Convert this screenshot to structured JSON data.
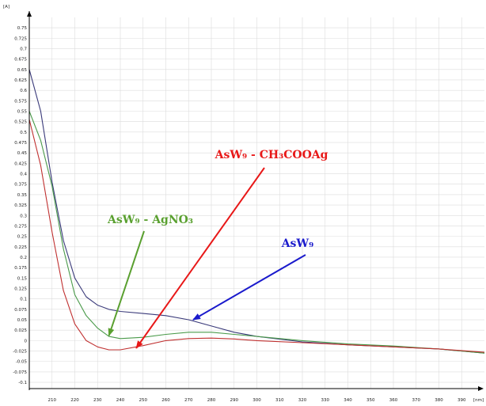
{
  "chart_data": {
    "type": "line",
    "ylabel": "[A]",
    "xunit": "[nm]",
    "xlim": [
      200,
      400
    ],
    "ylim": [
      -0.115,
      0.79
    ],
    "x_ticks": [
      210,
      220,
      230,
      240,
      250,
      260,
      270,
      280,
      290,
      300,
      310,
      320,
      330,
      340,
      350,
      360,
      370,
      380,
      390
    ],
    "y_ticks": [
      -0.1,
      -0.075,
      -0.05,
      -0.025,
      0,
      0.025,
      0.05,
      0.075,
      0.1,
      0.125,
      0.15,
      0.175,
      0.2,
      0.225,
      0.25,
      0.275,
      0.3,
      0.325,
      0.35,
      0.375,
      0.4,
      0.425,
      0.45,
      0.475,
      0.5,
      0.525,
      0.55,
      0.575,
      0.6,
      0.625,
      0.65,
      0.675,
      0.7,
      0.725,
      0.75
    ],
    "y_tick_labels": [
      "-0.1",
      "-0.075",
      "-0.05",
      "-0.025",
      "0",
      "0.025",
      "0.05",
      "0.075",
      "0.1",
      "0.125",
      "0.15",
      "0.175",
      "0.2",
      "0.225",
      "0.25",
      "0.275",
      "0.3",
      "0.325",
      "0.35",
      "0.375",
      "0.4",
      "0.425",
      "0.45",
      "0.475",
      "0.5",
      "0.525",
      "0.55",
      "0.575",
      "0.6",
      "0.625",
      "0.65",
      "0.675",
      "0.7",
      "0.725",
      "0.75"
    ],
    "grid": true,
    "series": [
      {
        "name": "AsW9",
        "color": "#3a3a7a",
        "x": [
          200,
          205,
          210,
          215,
          220,
          225,
          230,
          235,
          240,
          250,
          260,
          270,
          280,
          290,
          300,
          320,
          340,
          360,
          380,
          400
        ],
        "y": [
          0.65,
          0.55,
          0.38,
          0.24,
          0.15,
          0.105,
          0.085,
          0.075,
          0.07,
          0.065,
          0.06,
          0.05,
          0.035,
          0.02,
          0.01,
          -0.003,
          -0.01,
          -0.015,
          -0.02,
          -0.03
        ]
      },
      {
        "name": "AsW9 - AgNO3",
        "color": "#4a9a4a",
        "x": [
          200,
          205,
          210,
          215,
          220,
          225,
          230,
          235,
          240,
          250,
          260,
          270,
          280,
          290,
          300,
          320,
          340,
          360,
          380,
          400
        ],
        "y": [
          0.55,
          0.48,
          0.37,
          0.22,
          0.11,
          0.06,
          0.03,
          0.01,
          0.005,
          0.008,
          0.015,
          0.02,
          0.02,
          0.015,
          0.01,
          0.0,
          -0.008,
          -0.013,
          -0.02,
          -0.03
        ]
      },
      {
        "name": "AsW9 - CH3COOAg",
        "color": "#c03030",
        "x": [
          200,
          205,
          210,
          215,
          220,
          225,
          230,
          235,
          240,
          250,
          260,
          270,
          280,
          290,
          300,
          320,
          340,
          360,
          380,
          400
        ],
        "y": [
          0.53,
          0.42,
          0.26,
          0.12,
          0.04,
          0.0,
          -0.015,
          -0.022,
          -0.022,
          -0.012,
          0.0,
          0.005,
          0.006,
          0.004,
          0.0,
          -0.005,
          -0.01,
          -0.015,
          -0.02,
          -0.028
        ]
      }
    ],
    "annotations": [
      {
        "name": "annotation-asw9",
        "text": "AsW₉",
        "color": "#1a1acc",
        "arrow_to": [
          272,
          0.05
        ]
      },
      {
        "name": "annotation-agno3",
        "text": "AsW₉ - AgNO₃",
        "color": "#5aa030",
        "arrow_to": [
          235,
          0.012
        ]
      },
      {
        "name": "annotation-ch3cooag",
        "text": "AsW₉ - CH₃COOAg",
        "color": "#e81818",
        "arrow_to": [
          247,
          -0.018
        ]
      }
    ]
  }
}
